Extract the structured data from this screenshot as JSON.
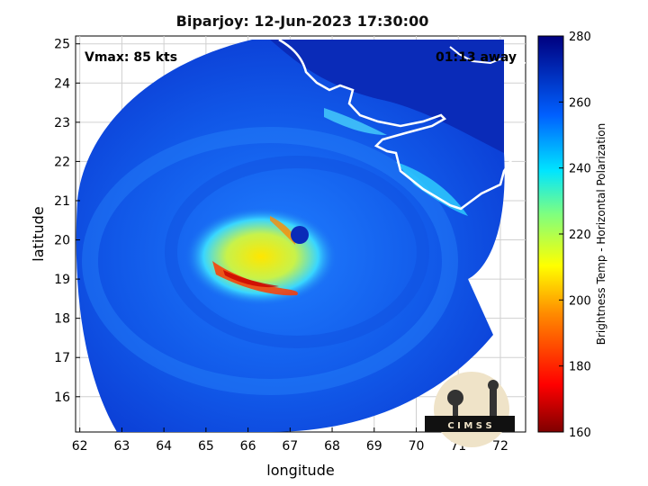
{
  "title": "Biparjoy: 12-Jun-2023 17:30:00",
  "annotations": {
    "vmax": "Vmax: 85 kts",
    "time_away": "01:13 away"
  },
  "map": {
    "xlabel": "longitude",
    "ylabel": "latitude",
    "xlim": [
      61.9,
      72.6
    ],
    "ylim": [
      15.1,
      25.2
    ],
    "xticks": [
      "62",
      "63",
      "64",
      "65",
      "66",
      "67",
      "68",
      "69",
      "70",
      "71",
      "72"
    ],
    "yticks": [
      "16",
      "17",
      "18",
      "19",
      "20",
      "21",
      "22",
      "23",
      "24",
      "25"
    ],
    "grid": true,
    "storm_center": {
      "lon": 67.2,
      "lat": 20.1
    },
    "coastline_color": "#ffffff"
  },
  "colorbar": {
    "label": "Brightness Temp - Horizontal Polarization",
    "range": [
      160,
      280
    ],
    "ticks": [
      "280",
      "260",
      "240",
      "220",
      "200",
      "180",
      "160"
    ],
    "colormap": "jet"
  },
  "logo": {
    "text": "C I M S S"
  }
}
